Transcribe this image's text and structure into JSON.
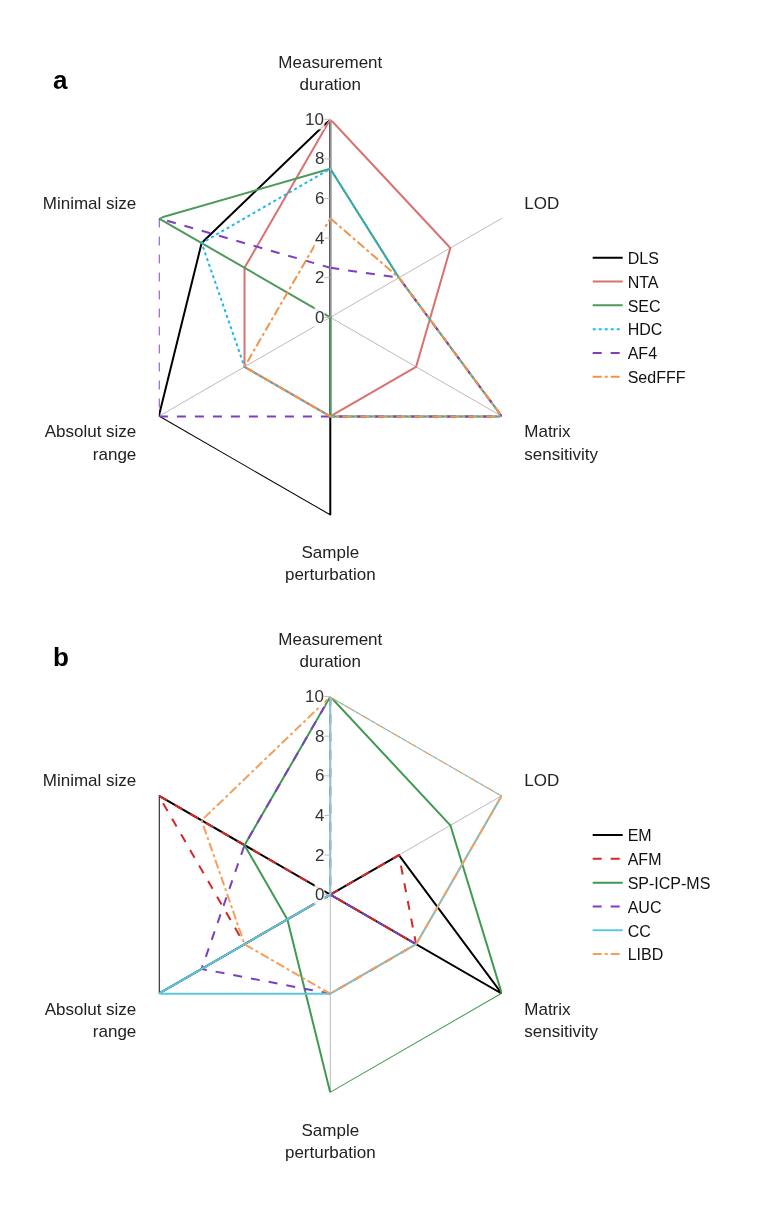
{
  "chart_data": [
    {
      "type": "radar",
      "title": "a",
      "categories": [
        "Measurement\nduration",
        "LOD",
        "Matrix\nsensitivity",
        "Sample\nperturbation",
        "Absolut size\nrange",
        "Minimal size"
      ],
      "ylim": [
        0,
        10
      ],
      "yticks": [
        0,
        2,
        4,
        6,
        8,
        10
      ],
      "grid": "x",
      "legend": "right",
      "marker": "none",
      "series": [
        {
          "name": "DLS",
          "color": "#000000",
          "line_style": "solid",
          "values": [
            10,
            0,
            0,
            10,
            10,
            7.5
          ]
        },
        {
          "name": "NTA",
          "color": "#d9726f",
          "line_style": "solid",
          "values": [
            10,
            7,
            5,
            5,
            5,
            5
          ]
        },
        {
          "name": "SEC",
          "color": "#4e9a5a",
          "line_style": "solid",
          "values": [
            7.5,
            4,
            10,
            5,
            0,
            10
          ]
        },
        {
          "name": "HDC",
          "color": "#1fb8e8",
          "line_style": "dotted",
          "values": [
            7.5,
            4,
            10,
            5,
            5,
            7.5
          ]
        },
        {
          "name": "AF4",
          "color": "#7d3fc0",
          "line_style": "dashed",
          "values": [
            2.5,
            4,
            10,
            5,
            10,
            10
          ]
        },
        {
          "name": "SedFFF",
          "color": "#f0944a",
          "line_style": "dashdot",
          "values": [
            5,
            4,
            10,
            5,
            5,
            2.5
          ]
        }
      ]
    },
    {
      "type": "radar",
      "title": "b",
      "categories": [
        "Measurement\nduration",
        "LOD",
        "Matrix\nsensitivity",
        "Sample\nperturbation",
        "Absolut size\nrange",
        "Minimal size"
      ],
      "ylim": [
        0,
        10
      ],
      "yticks": [
        0,
        2,
        4,
        6,
        8,
        10
      ],
      "grid": "x",
      "legend": "right",
      "marker": "none",
      "series": [
        {
          "name": "EM",
          "color": "#000000",
          "line_style": "solid",
          "values": [
            0,
            4,
            10,
            0,
            10,
            10
          ]
        },
        {
          "name": "AFM",
          "color": "#d62728",
          "line_style": "dashed",
          "values": [
            0,
            4,
            5,
            0,
            5,
            10
          ]
        },
        {
          "name": "SP-ICP-MS",
          "color": "#3f9a4f",
          "line_style": "solid",
          "values": [
            10,
            7,
            10,
            10,
            2.5,
            5
          ]
        },
        {
          "name": "AUC",
          "color": "#7b3fc4",
          "line_style": "dashed",
          "values": [
            10,
            0,
            5,
            5,
            7.5,
            5
          ]
        },
        {
          "name": "CC",
          "color": "#5bc8e0",
          "line_style": "solid",
          "values": [
            10,
            10,
            5,
            5,
            10,
            0
          ]
        },
        {
          "name": "LIBD",
          "color": "#f5a05a",
          "line_style": "dashdot",
          "values": [
            10,
            10,
            5,
            5,
            5,
            7.5
          ]
        }
      ]
    }
  ]
}
